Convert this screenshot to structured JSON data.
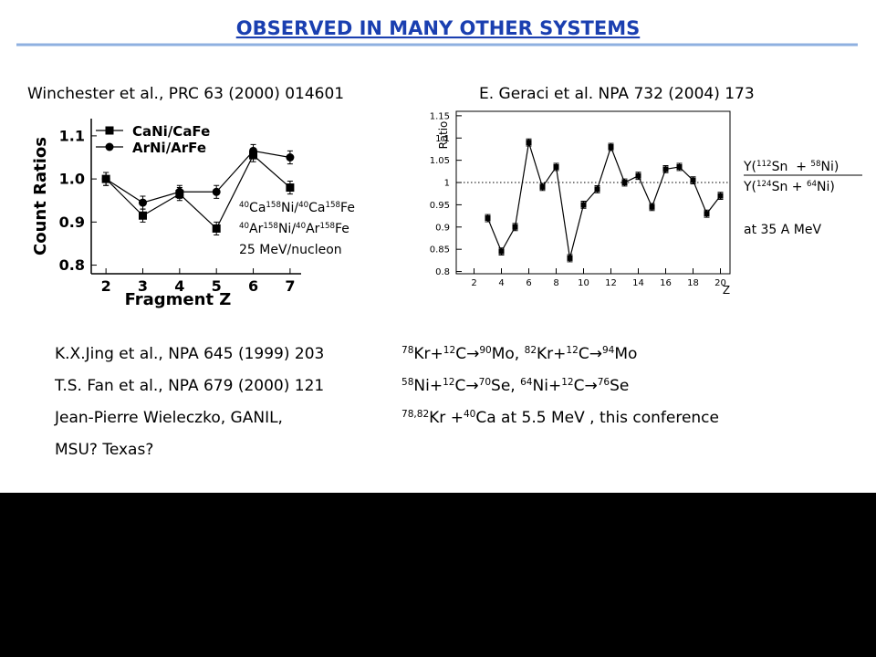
{
  "title": "OBSERVED IN MANY OTHER SYSTEMS",
  "references": [
    "Winchester et al., PRC 63 (2000) 014601",
    "E. Geraci et al. NPA 732 (2004) 173"
  ],
  "chart_data": [
    {
      "type": "line",
      "x_label": "Fragment Z",
      "y_label": "Count Ratios",
      "x": [
        2,
        3,
        4,
        5,
        6,
        7
      ],
      "series": [
        {
          "name": "CaNi/CaFe",
          "color": "#000000",
          "marker": "square",
          "values": [
            1.0,
            0.915,
            0.965,
            0.885,
            1.055,
            0.98
          ],
          "errors": [
            0.015,
            0.015,
            0.015,
            0.015,
            0.015,
            0.015
          ]
        },
        {
          "name": "ArNi/ArFe",
          "color": "#000000",
          "marker": "circle",
          "values": [
            1.0,
            0.945,
            0.97,
            0.97,
            1.065,
            1.05
          ],
          "errors": [
            0.015,
            0.015,
            0.015,
            0.015,
            0.015,
            0.015
          ]
        }
      ],
      "xlim": [
        1.6,
        7.3
      ],
      "xticks": [
        2,
        3,
        4,
        5,
        6,
        7
      ],
      "ylim": [
        0.78,
        1.14
      ],
      "yticks": [
        0.8,
        0.9,
        {
          "value": 1,
          "label": "1.0"
        },
        1.1
      ],
      "legend": "top-left",
      "annotation": [
        [
          {
            "sup": "40"
          },
          "Ca",
          {
            "sup": "158"
          },
          "Ni/",
          {
            "sup": "40"
          },
          "Ca",
          {
            "sup": "158"
          },
          "Fe"
        ],
        [
          {
            "sup": "40"
          },
          "Ar",
          {
            "sup": "158"
          },
          "Ni/",
          {
            "sup": "40"
          },
          "Ar",
          {
            "sup": "158"
          },
          "Fe"
        ],
        [
          "25 MeV/nucleon"
        ]
      ]
    },
    {
      "type": "line",
      "x_label": "Z",
      "y_label": "Ratio",
      "x": [
        3,
        4,
        5,
        6,
        7,
        8,
        9,
        10,
        11,
        12,
        13,
        14,
        15,
        16,
        17,
        18,
        19,
        20
      ],
      "series": [
        {
          "color": "#000000",
          "marker": "square",
          "values": [
            0.92,
            0.845,
            0.9,
            1.09,
            0.99,
            1.035,
            0.83,
            0.95,
            0.985,
            1.08,
            1.0,
            1.015,
            0.945,
            1.03,
            1.035,
            1.005,
            0.93,
            0.97
          ],
          "errors": [
            0.008,
            0.008,
            0.008,
            0.008,
            0.008,
            0.008,
            0.008,
            0.008,
            0.008,
            0.008,
            0.008,
            0.008,
            0.008,
            0.008,
            0.008,
            0.008,
            0.008,
            0.008
          ]
        }
      ],
      "xlim": [
        0.7,
        20.7
      ],
      "xticks": [
        2,
        4,
        6,
        8,
        10,
        12,
        14,
        16,
        18,
        20
      ],
      "ylim": [
        0.795,
        1.16
      ],
      "yticks": [
        0.8,
        0.85,
        0.9,
        0.95,
        1,
        1.05,
        1.1,
        1.15
      ],
      "reference_line": 1,
      "ratio_label": {
        "numerator": [
          "Y(",
          {
            "sup": "112"
          },
          "Sn  + ",
          {
            "sup": "58"
          },
          "Ni)"
        ],
        "denominator": [
          "Y(",
          {
            "sup": "124"
          },
          "Sn + ",
          {
            "sup": "64"
          },
          "Ni)"
        ]
      },
      "note": "at 35 A MeV"
    }
  ],
  "other_works": [
    {
      "source": "K.X.Jing et al., NPA 645 (1999) 203",
      "reaction": [
        {
          "sup": "78"
        },
        "Kr+",
        {
          "sup": "12"
        },
        "C→",
        {
          "sup": "90"
        },
        "Mo, ",
        {
          "sup": "82"
        },
        "Kr+",
        {
          "sup": "12"
        },
        "C→",
        {
          "sup": "94"
        },
        "Mo"
      ]
    },
    {
      "source": "T.S. Fan et al., NPA 679 (2000) 121",
      "reaction": [
        {
          "sup": "58"
        },
        "Ni+",
        {
          "sup": "12"
        },
        "C→",
        {
          "sup": "70"
        },
        "Se, ",
        {
          "sup": "64"
        },
        "Ni+",
        {
          "sup": "12"
        },
        "C→",
        {
          "sup": "76"
        },
        "Se"
      ]
    },
    {
      "source": "Jean-Pierre Wieleczko, GANIL,",
      "reaction": [
        {
          "sup": "78,82"
        },
        "Kr +",
        {
          "sup": "40"
        },
        "Ca at 5.5 MeV , this conference"
      ]
    },
    {
      "source": "MSU? Texas?"
    }
  ]
}
